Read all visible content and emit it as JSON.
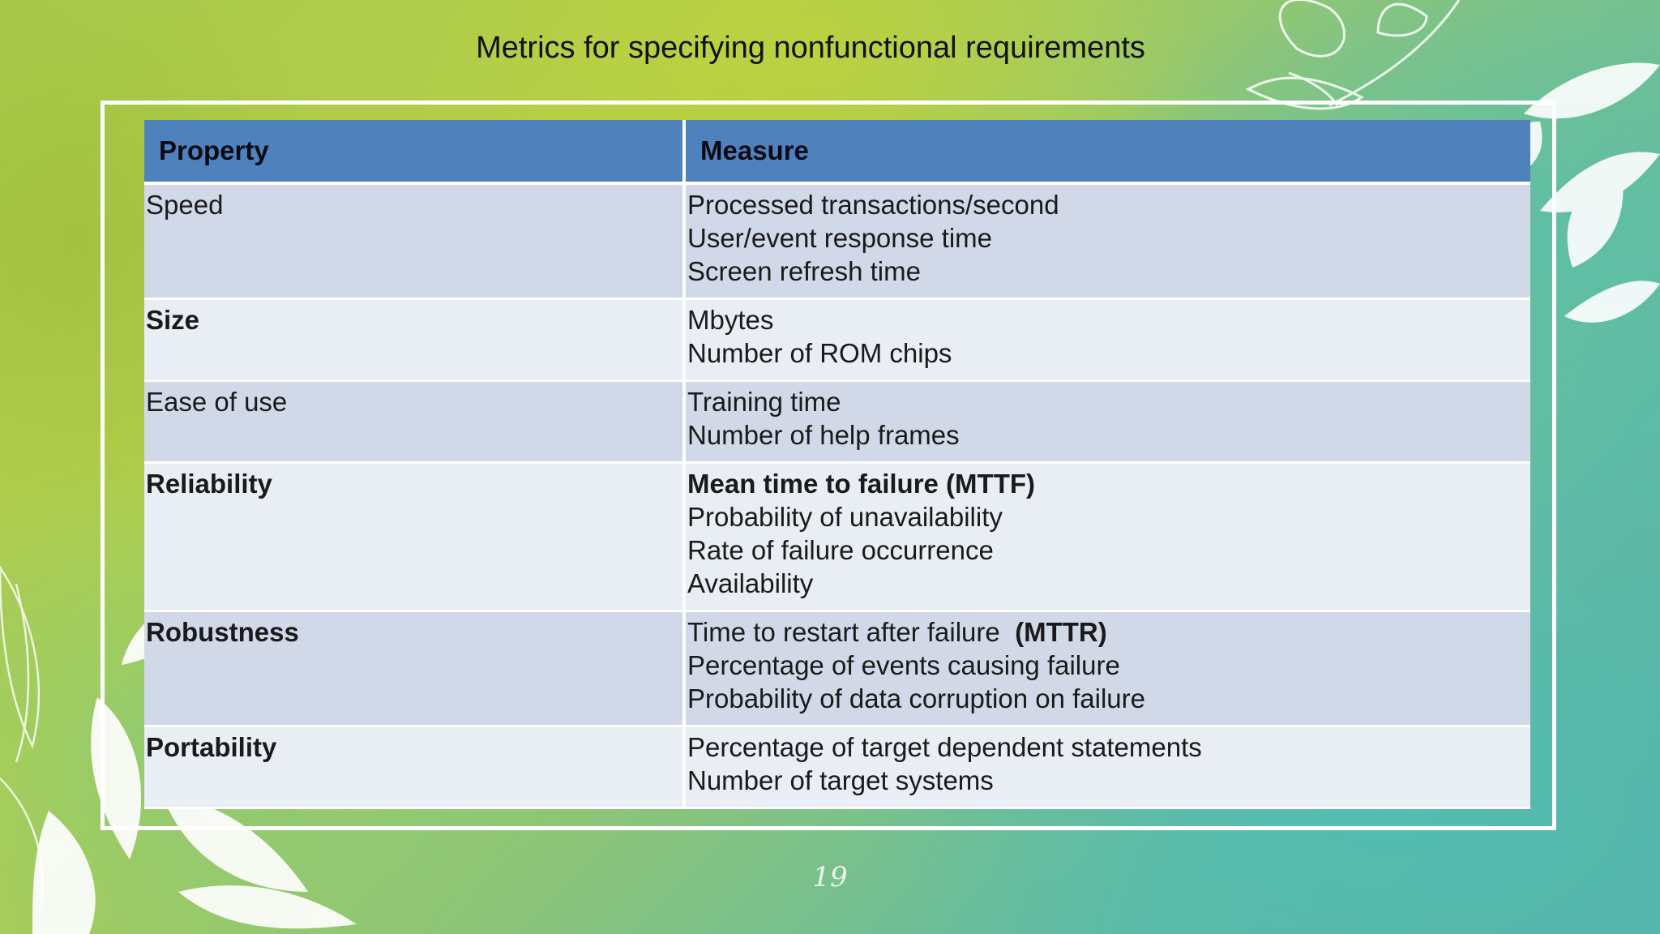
{
  "slide": {
    "title": "Metrics for specifying nonfunctional requirements",
    "page_number": "19"
  },
  "table": {
    "headers": [
      "Property",
      "Measure"
    ],
    "rows": [
      {
        "property": "Speed",
        "property_bold": false,
        "measures": [
          "Processed transactions/second",
          "User/event response time",
          "Screen refresh time"
        ]
      },
      {
        "property": "Size",
        "property_bold": true,
        "measures": [
          "Mbytes",
          "Number of ROM chips"
        ]
      },
      {
        "property": "Ease of use",
        "property_bold": false,
        "measures": [
          "Training time",
          "Number of help frames"
        ]
      },
      {
        "property": "Reliability",
        "property_bold": true,
        "measures": [
          "Mean time to failure  (MTTF)",
          "Probability of unavailability",
          "Rate of failure occurrence",
          "Availability"
        ]
      },
      {
        "property": "Robustness",
        "property_bold": true,
        "measures": [
          "Time to restart after failure",
          "Percentage of events causing failure",
          "Probability of data corruption on failure"
        ],
        "measure_suffix": "(MTTR)"
      },
      {
        "property": "Portability",
        "property_bold": true,
        "measures": [
          "Percentage of target dependent statements",
          "Number of target systems"
        ]
      }
    ]
  },
  "colors": {
    "header_bg": "#4f81bd",
    "row_odd": "#d1d8e8",
    "row_even": "#e9edf4",
    "frame": "#ffffff"
  }
}
